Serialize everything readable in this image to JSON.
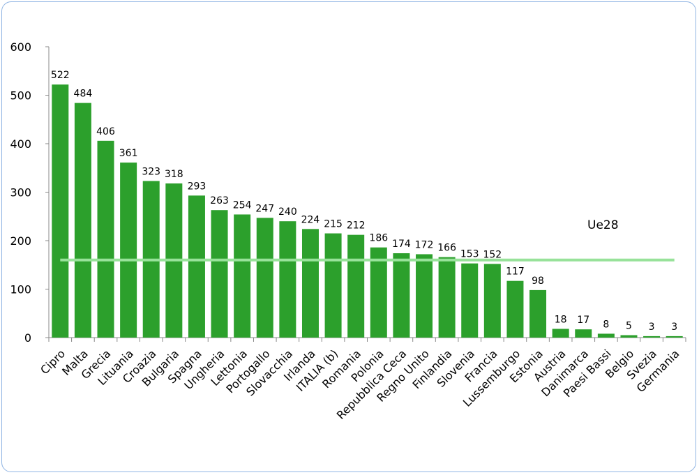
{
  "chart_data": {
    "type": "bar",
    "categories": [
      "Cipro",
      "Malta",
      "Grecia",
      "Lituania",
      "Croazia",
      "Bulgaria",
      "Spagna",
      "Ungheria",
      "Lettonia",
      "Portogallo",
      "Slovacchia",
      "Irlanda",
      "ITALIA (b)",
      "Romania",
      "Polonia",
      "Repubblica Ceca",
      "Regno Unito",
      "Finlandia",
      "Slovenia",
      "Francia",
      "Lussemburgo",
      "Estonia",
      "Austria",
      "Danimarca",
      "Paesi Bassi",
      "Belgio",
      "Svezia",
      "Germania"
    ],
    "values": [
      522,
      484,
      406,
      361,
      323,
      318,
      293,
      263,
      254,
      247,
      240,
      224,
      215,
      212,
      186,
      174,
      172,
      166,
      153,
      152,
      117,
      98,
      18,
      17,
      8,
      5,
      3,
      3
    ],
    "ylim": [
      0,
      600
    ],
    "yticks": [
      0,
      100,
      200,
      300,
      400,
      500,
      600
    ],
    "grid": false,
    "bar_color": "#2ca02c",
    "reference_line": {
      "label": "Ue28",
      "value": 160,
      "color": "#98e29a"
    }
  }
}
